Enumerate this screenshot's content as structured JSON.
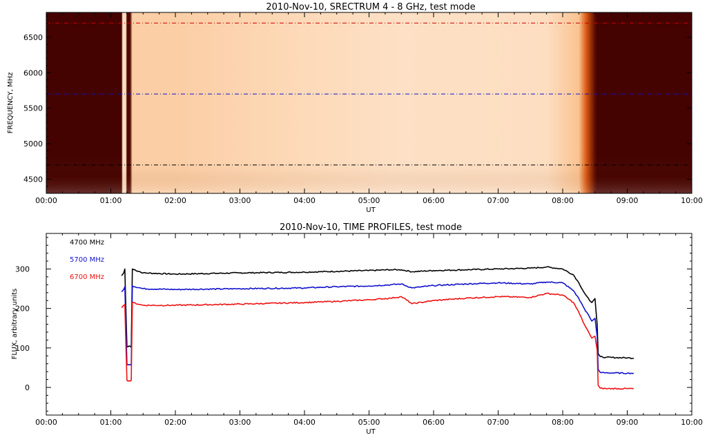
{
  "chart_data": [
    {
      "type": "heatmap",
      "title": "2010-Nov-10,  SRECTRUM 4 - 8 GHz,  test mode",
      "xlabel": "UT",
      "ylabel": "FREQUENCY, MHz",
      "xlim": [
        "00:00",
        "10:00"
      ],
      "ylim": [
        4300,
        6850
      ],
      "x_ticks": [
        "00:00",
        "01:00",
        "02:00",
        "03:00",
        "04:00",
        "05:00",
        "06:00",
        "07:00",
        "08:00",
        "09:00",
        "10:00"
      ],
      "y_ticks": [
        4500,
        5000,
        5500,
        6000,
        6500
      ],
      "colormap": "dark red to pale orange",
      "reference_lines": [
        {
          "frequency": 6700,
          "color": "#cc0000"
        },
        {
          "frequency": 5700,
          "color": "#1010cc"
        },
        {
          "frequency": 4700,
          "color": "#000000"
        }
      ],
      "intensity_profile": [
        {
          "t": "00:00",
          "level": 0.02
        },
        {
          "t": "01:10",
          "level": 0.02
        },
        {
          "t": "01:11",
          "level": 0.92
        },
        {
          "t": "01:14",
          "level": 0.92
        },
        {
          "t": "01:15",
          "level": 0.05
        },
        {
          "t": "01:18",
          "level": 0.05
        },
        {
          "t": "01:20",
          "level": 0.85
        },
        {
          "t": "02:00",
          "level": 0.85
        },
        {
          "t": "04:00",
          "level": 0.9
        },
        {
          "t": "05:30",
          "level": 0.93
        },
        {
          "t": "07:45",
          "level": 0.92
        },
        {
          "t": "08:15",
          "level": 0.8
        },
        {
          "t": "08:22",
          "level": 0.45
        },
        {
          "t": "08:30",
          "level": 0.08
        },
        {
          "t": "08:32",
          "level": 0.02
        },
        {
          "t": "10:00",
          "level": 0.02
        }
      ]
    },
    {
      "type": "line",
      "title": "2010-Nov-10,  TIME PROFILES,  test mode",
      "xlabel": "UT",
      "ylabel": "FLUX, arbitrary units",
      "xlim": [
        "00:00",
        "10:00"
      ],
      "ylim": [
        -70,
        390
      ],
      "x_ticks": [
        "00:00",
        "01:00",
        "02:00",
        "03:00",
        "04:00",
        "05:00",
        "06:00",
        "07:00",
        "08:00",
        "09:00",
        "10:00"
      ],
      "y_ticks": [
        0,
        100,
        200,
        300
      ],
      "legend_position": "top-left",
      "series": [
        {
          "name": "4700 MHz",
          "color": "#000000",
          "x": [
            "01:10",
            "01:12",
            "01:13",
            "01:14",
            "01:15",
            "01:16",
            "01:17",
            "01:18",
            "01:19",
            "01:20",
            "01:30",
            "02:00",
            "03:00",
            "04:00",
            "04:30",
            "05:00",
            "05:20",
            "05:30",
            "05:40",
            "06:00",
            "06:30",
            "07:00",
            "07:30",
            "07:45",
            "08:00",
            "08:10",
            "08:15",
            "08:20",
            "08:25",
            "08:27",
            "08:30",
            "08:32",
            "08:33",
            "08:35",
            "08:40",
            "09:00",
            "09:06"
          ],
          "y": [
            283,
            290,
            300,
            200,
            103,
            103,
            105,
            104,
            102,
            300,
            290,
            287,
            290,
            292,
            294,
            296,
            298,
            298,
            293,
            296,
            298,
            300,
            302,
            305,
            300,
            285,
            265,
            240,
            220,
            215,
            225,
            160,
            85,
            78,
            76,
            75,
            74
          ]
        },
        {
          "name": "5700 MHz",
          "color": "#1010cc",
          "x": [
            "01:10",
            "01:12",
            "01:13",
            "01:14",
            "01:15",
            "01:16",
            "01:17",
            "01:18",
            "01:19",
            "01:20",
            "01:30",
            "02:00",
            "03:00",
            "04:00",
            "04:30",
            "05:00",
            "05:20",
            "05:30",
            "05:40",
            "06:00",
            "06:30",
            "07:00",
            "07:30",
            "07:45",
            "08:00",
            "08:10",
            "08:15",
            "08:20",
            "08:25",
            "08:27",
            "08:30",
            "08:32",
            "08:33",
            "08:35",
            "08:40",
            "09:00",
            "09:06"
          ],
          "y": [
            242,
            248,
            255,
            160,
            58,
            57,
            58,
            57,
            58,
            257,
            250,
            248,
            250,
            252,
            255,
            257,
            260,
            262,
            252,
            258,
            262,
            265,
            262,
            267,
            265,
            245,
            225,
            200,
            178,
            168,
            175,
            130,
            45,
            38,
            37,
            36,
            36
          ]
        },
        {
          "name": "6700 MHz",
          "color": "#ee1111",
          "x": [
            "01:10",
            "01:12",
            "01:13",
            "01:14",
            "01:15",
            "01:16",
            "01:17",
            "01:18",
            "01:19",
            "01:20",
            "01:30",
            "02:00",
            "03:00",
            "04:00",
            "04:30",
            "05:00",
            "05:20",
            "05:30",
            "05:40",
            "06:00",
            "06:30",
            "07:00",
            "07:30",
            "07:45",
            "08:00",
            "08:10",
            "08:15",
            "08:20",
            "08:25",
            "08:27",
            "08:30",
            "08:32",
            "08:33",
            "08:35",
            "08:40",
            "09:00",
            "09:06"
          ],
          "y": [
            202,
            208,
            210,
            110,
            18,
            16,
            17,
            16,
            18,
            215,
            208,
            208,
            211,
            215,
            218,
            222,
            226,
            230,
            212,
            220,
            226,
            230,
            228,
            238,
            234,
            215,
            190,
            160,
            135,
            125,
            130,
            95,
            5,
            -2,
            -3,
            -3,
            -3
          ]
        }
      ]
    }
  ]
}
